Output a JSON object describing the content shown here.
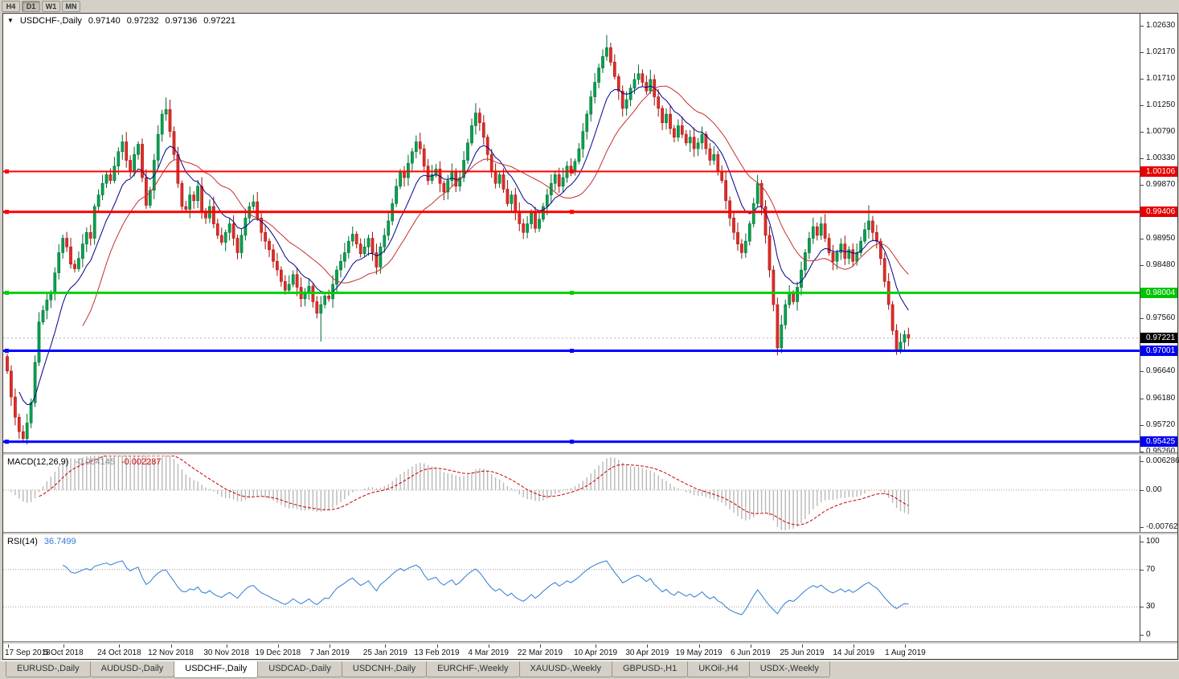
{
  "toolbar": {
    "timeframes": [
      "H4",
      "D1",
      "W1",
      "MN"
    ],
    "active": "D1"
  },
  "chart_header": {
    "collapse_icon": "▼",
    "symbol": "USDCHF-,Daily",
    "open": "0.97140",
    "high": "0.97232",
    "low": "0.97136",
    "close": "0.97221"
  },
  "chart_data": {
    "type": "candlestick",
    "symbol": "USDCHF",
    "timeframe": "Daily",
    "title": "USDCHF-,Daily",
    "ohlc": {
      "open": 0.9714,
      "high": 0.97232,
      "low": 0.97136,
      "close": 0.97221
    },
    "ylim": [
      0.9524,
      1.0284
    ],
    "first_open": 0.969,
    "closes": [
      0.9665,
      0.962,
      0.9585,
      0.956,
      0.9548,
      0.9575,
      0.961,
      0.968,
      0.975,
      0.977,
      0.9788,
      0.98,
      0.9835,
      0.987,
      0.9895,
      0.988,
      0.985,
      0.9842,
      0.986,
      0.9885,
      0.9905,
      0.9895,
      0.995,
      0.997,
      0.999,
      1.0005,
      0.9995,
      1.002,
      1.0045,
      1.0062,
      1.003,
      1.0012,
      1.004,
      1.0058,
      1.0,
      0.9952,
      0.9978,
      1.003,
      1.0075,
      1.011,
      1.0118,
      1.008,
      1.004,
      0.999,
      0.995,
      0.9945,
      0.997,
      0.996,
      0.9985,
      0.994,
      0.993,
      0.995,
      0.992,
      0.99,
      0.9888,
      0.9905,
      0.992,
      0.9895,
      0.987,
      0.99,
      0.993,
      0.995,
      0.9958,
      0.993,
      0.9905,
      0.989,
      0.9875,
      0.9855,
      0.984,
      0.982,
      0.9805,
      0.9815,
      0.9832,
      0.981,
      0.979,
      0.98,
      0.9812,
      0.9785,
      0.9765,
      0.978,
      0.9795,
      0.979,
      0.9815,
      0.984,
      0.9855,
      0.987,
      0.989,
      0.9902,
      0.9885,
      0.9868,
      0.988,
      0.9895,
      0.987,
      0.9845,
      0.988,
      0.99,
      0.9925,
      0.9955,
      0.9985,
      1.001,
      1.0,
      1.0025,
      1.0045,
      1.0062,
      1.005,
      1.002,
      0.9995,
      1.0005,
      1.0015,
      0.999,
      0.9975,
      0.9995,
      1.001,
      0.9985,
      1.0,
      1.003,
      1.006,
      1.009,
      1.0112,
      1.0095,
      1.007,
      1.004,
      1.001,
      0.999,
      1.0005,
      0.998,
      0.9955,
      0.997,
      0.994,
      0.992,
      0.9905,
      0.992,
      0.994,
      0.9912,
      0.9928,
      0.995,
      0.997,
      0.999,
      1.0005,
      0.9985,
      1.0,
      1.002,
      1.001,
      1.0028,
      1.005,
      1.008,
      1.011,
      1.014,
      1.0165,
      1.019,
      1.021,
      1.0225,
      1.02,
      1.0175,
      1.015,
      1.012,
      1.0135,
      1.0155,
      1.017,
      1.018,
      1.0165,
      1.015,
      1.017,
      1.014,
      1.012,
      1.0095,
      1.011,
      1.0085,
      1.007,
      1.009,
      1.0075,
      1.006,
      1.007,
      1.005,
      1.006,
      1.0075,
      1.005,
      1.003,
      1.004,
      1.001,
      0.9995,
      0.996,
      0.993,
      0.9905,
      0.9885,
      0.987,
      0.989,
      0.992,
      0.9955,
      0.999,
      0.995,
      0.99,
      0.984,
      0.978,
      0.9705,
      0.9745,
      0.978,
      0.98,
      0.9785,
      0.981,
      0.984,
      0.987,
      0.9895,
      0.9915,
      0.99,
      0.992,
      0.9895,
      0.987,
      0.9855,
      0.987,
      0.9885,
      0.986,
      0.9875,
      0.9855,
      0.987,
      0.989,
      0.991,
      0.9925,
      0.9905,
      0.989,
      0.986,
      0.982,
      0.978,
      0.9735,
      0.97,
      0.9715,
      0.9728,
      0.9722
    ],
    "wick_overrides": {
      "4": {
        "l": 0.9543
      },
      "40": {
        "h": 1.0139
      },
      "79": {
        "l": 0.9716
      },
      "118": {
        "h": 1.0129
      },
      "151": {
        "h": 1.0247
      },
      "194": {
        "l": 0.9692
      },
      "217": {
        "h": 0.9952
      },
      "224": {
        "l": 0.9693
      }
    },
    "candle_colors": {
      "bull": "#00A24E",
      "bull_border": "#00672F",
      "bear": "#E02D26",
      "bear_border": "#9E0F0B"
    },
    "moving_averages": [
      {
        "name": "fast",
        "type": "ema",
        "period": 10,
        "color": "#00008B"
      },
      {
        "name": "slow",
        "type": "sma",
        "period": 20,
        "color": "#C62F2F"
      }
    ],
    "hlines": [
      {
        "value": 1.00106,
        "text": "1.00106",
        "color": "#FF0000",
        "width": 2
      },
      {
        "value": 0.99406,
        "text": "0.99406",
        "color": "#FF0000",
        "width": 3
      },
      {
        "value": 0.98004,
        "text": "0.98004",
        "color": "#00D000",
        "width": 3
      },
      {
        "value": 0.97001,
        "text": "0.97001",
        "color": "#0000FF",
        "width": 3
      },
      {
        "value": 0.95425,
        "text": "0.95425",
        "color": "#0000FF",
        "width": 3
      }
    ],
    "y_labels": [
      {
        "text": "1.02630",
        "value": 1.0263
      },
      {
        "text": "1.02170",
        "value": 1.0217
      },
      {
        "text": "1.01710",
        "value": 1.0171
      },
      {
        "text": "1.01250",
        "value": 1.0125
      },
      {
        "text": "1.00790",
        "value": 1.0079
      },
      {
        "text": "1.00330",
        "value": 1.0033
      },
      {
        "text": "0.99870",
        "value": 0.9987
      },
      {
        "text": "0.98950",
        "value": 0.9895
      },
      {
        "text": "0.98480",
        "value": 0.9848
      },
      {
        "text": "0.97560",
        "value": 0.9756
      },
      {
        "text": "0.96640",
        "value": 0.9664
      },
      {
        "text": "0.96180",
        "value": 0.9618
      },
      {
        "text": "0.95720",
        "value": 0.9572
      },
      {
        "text": "0.95260",
        "value": 0.9526
      }
    ],
    "price_tags": [
      {
        "text": "1.00106",
        "value": 1.00106,
        "color": "#E60000"
      },
      {
        "text": "0.99406",
        "value": 0.99406,
        "color": "#E60000"
      },
      {
        "text": "0.98004",
        "value": 0.98004,
        "color": "#00C400"
      },
      {
        "text": "0.97221",
        "value": 0.97221,
        "color": "#000000"
      },
      {
        "text": "0.97001",
        "value": 0.97001,
        "color": "#0000EE"
      },
      {
        "text": "0.95425",
        "value": 0.95425,
        "color": "#0000EE"
      }
    ],
    "x_labels": [
      {
        "text": "17 Sep 2018",
        "idx": 0
      },
      {
        "text": "5 Oct 2018",
        "idx": 14
      },
      {
        "text": "24 Oct 2018",
        "idx": 28
      },
      {
        "text": "12 Nov 2018",
        "idx": 41
      },
      {
        "text": "30 Nov 2018",
        "idx": 55
      },
      {
        "text": "19 Dec 2018",
        "idx": 68
      },
      {
        "text": "7 Jan 2019",
        "idx": 81
      },
      {
        "text": "25 Jan 2019",
        "idx": 95
      },
      {
        "text": "13 Feb 2019",
        "idx": 108
      },
      {
        "text": "4 Mar 2019",
        "idx": 121
      },
      {
        "text": "22 Mar 2019",
        "idx": 134
      },
      {
        "text": "10 Apr 2019",
        "idx": 148
      },
      {
        "text": "30 Apr 2019",
        "idx": 161
      },
      {
        "text": "19 May 2019",
        "idx": 174
      },
      {
        "text": "6 Jun 2019",
        "idx": 187
      },
      {
        "text": "25 Jun 2019",
        "idx": 200
      },
      {
        "text": "14 Jul 2019",
        "idx": 213
      },
      {
        "text": "1 Aug 2019",
        "idx": 226
      }
    ],
    "indicators": {
      "macd": {
        "label": "MACD(12,26,9)",
        "fast": 12,
        "slow": 26,
        "signal": 9,
        "value_main": "-0.004145",
        "value_signal": "-0.002287",
        "axis_labels": [
          "0.006286",
          "0.00",
          "-0.00762"
        ],
        "ylim": [
          -0.00762,
          0.006286
        ],
        "histogram_color": "#B8B8B8",
        "signal_color": "#CC0000"
      },
      "rsi": {
        "label": "RSI(14)",
        "period": 14,
        "value": "36.7499",
        "axis_labels": [
          "100",
          "70",
          "30",
          "0"
        ],
        "levels": [
          70,
          30
        ],
        "ylim": [
          0,
          100
        ],
        "color": "#2D7CD2"
      }
    }
  },
  "tabs": [
    {
      "label": "EURUSD-,Daily",
      "active": false
    },
    {
      "label": "AUDUSD-,Daily",
      "active": false
    },
    {
      "label": "USDCHF-,Daily",
      "active": true
    },
    {
      "label": "USDCAD-,Daily",
      "active": false
    },
    {
      "label": "USDCNH-,Daily",
      "active": false
    },
    {
      "label": "EURCHF-,Weekly",
      "active": false
    },
    {
      "label": "XAUUSD-,Weekly",
      "active": false
    },
    {
      "label": "GBPUSD-,H1",
      "active": false
    },
    {
      "label": "UKOil-,H4",
      "active": false
    },
    {
      "label": "USDX-,Weekly",
      "active": false
    }
  ]
}
